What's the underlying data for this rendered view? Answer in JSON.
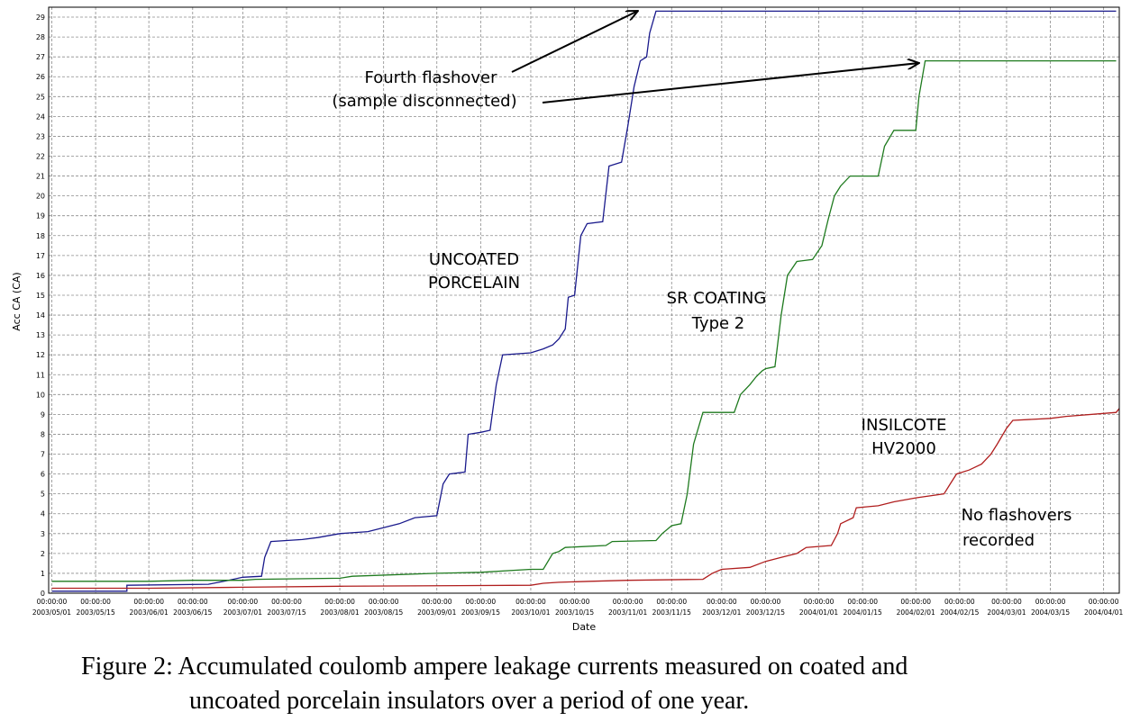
{
  "chart_data": {
    "type": "line",
    "ylabel": "Acc CA (CA)",
    "xlabel": "Date",
    "ylim": [
      0,
      29.5
    ],
    "xlim": [
      "2003-04-30",
      "2004-04-06"
    ],
    "y_ticks": [
      0,
      1,
      2,
      3,
      4,
      5,
      6,
      7,
      8,
      9,
      10,
      11,
      12,
      13,
      14,
      15,
      16,
      17,
      18,
      19,
      20,
      21,
      22,
      23,
      24,
      25,
      26,
      27,
      28,
      29
    ],
    "x_ticks": [
      {
        "time": "00:00:00",
        "date": "2003/05/01",
        "at": "2003-05-01"
      },
      {
        "time": "00:00:00",
        "date": "2003/05/15",
        "at": "2003-05-15"
      },
      {
        "time": "00:00:00",
        "date": "2003/06/01",
        "at": "2003-06-01"
      },
      {
        "time": "00:00:00",
        "date": "2003/06/15",
        "at": "2003-06-15"
      },
      {
        "time": "00:00:00",
        "date": "2003/07/01",
        "at": "2003-07-01"
      },
      {
        "time": "00:00:00",
        "date": "2003/07/15",
        "at": "2003-07-15"
      },
      {
        "time": "00:00:00",
        "date": "2003/08/01",
        "at": "2003-08-01"
      },
      {
        "time": "00:00:00",
        "date": "2003/08/15",
        "at": "2003-08-15"
      },
      {
        "time": "00:00:00",
        "date": "2003/09/01",
        "at": "2003-09-01"
      },
      {
        "time": "00:00:00",
        "date": "2003/09/15",
        "at": "2003-09-15"
      },
      {
        "time": "00:00:00",
        "date": "2003/10/01",
        "at": "2003-10-01"
      },
      {
        "time": "00:00:00",
        "date": "2003/10/15",
        "at": "2003-10-15"
      },
      {
        "time": "00:00:00",
        "date": "2003/11/01",
        "at": "2003-11-01"
      },
      {
        "time": "00:00:00",
        "date": "2003/11/15",
        "at": "2003-11-15"
      },
      {
        "time": "00:00:00",
        "date": "2003/12/01",
        "at": "2003-12-01"
      },
      {
        "time": "00:00:00",
        "date": "2003/12/15",
        "at": "2003-12-15"
      },
      {
        "time": "00:00:00",
        "date": "2004/01/01",
        "at": "2004-01-01"
      },
      {
        "time": "00:00:00",
        "date": "2004/01/15",
        "at": "2004-01-15"
      },
      {
        "time": "00:00:00",
        "date": "2004/02/01",
        "at": "2004-02-01"
      },
      {
        "time": "00:00:00",
        "date": "2004/02/15",
        "at": "2004-02-15"
      },
      {
        "time": "00:00:00",
        "date": "2004/03/01",
        "at": "2004-03-01"
      },
      {
        "time": "00:00:00",
        "date": "2004/03/15",
        "at": "2004-03-15"
      },
      {
        "time": "00:00:00",
        "date": "2004/04/01",
        "at": "2004-04-01"
      }
    ],
    "grid": true,
    "series": [
      {
        "color": "#1a1a8c",
        "points": [
          [
            "2003-05-01",
            0.1
          ],
          [
            "2003-05-25",
            0.1
          ],
          [
            "2003-05-25",
            0.4
          ],
          [
            "2003-06-20",
            0.45
          ],
          [
            "2003-06-25",
            0.6
          ],
          [
            "2003-07-01",
            0.8
          ],
          [
            "2003-07-07",
            0.85
          ],
          [
            "2003-07-08",
            1.8
          ],
          [
            "2003-07-10",
            2.6
          ],
          [
            "2003-07-20",
            2.7
          ],
          [
            "2003-07-25",
            2.8
          ],
          [
            "2003-08-01",
            3.0
          ],
          [
            "2003-08-10",
            3.1
          ],
          [
            "2003-08-20",
            3.5
          ],
          [
            "2003-08-25",
            3.8
          ],
          [
            "2003-09-01",
            3.9
          ],
          [
            "2003-09-03",
            5.5
          ],
          [
            "2003-09-05",
            6.0
          ],
          [
            "2003-09-10",
            6.1
          ],
          [
            "2003-09-11",
            8.0
          ],
          [
            "2003-09-15",
            8.1
          ],
          [
            "2003-09-18",
            8.2
          ],
          [
            "2003-09-20",
            10.5
          ],
          [
            "2003-09-22",
            12.0
          ],
          [
            "2003-10-01",
            12.1
          ],
          [
            "2003-10-05",
            12.3
          ],
          [
            "2003-10-08",
            12.5
          ],
          [
            "2003-10-10",
            12.8
          ],
          [
            "2003-10-12",
            13.3
          ],
          [
            "2003-10-13",
            14.9
          ],
          [
            "2003-10-15",
            15.0
          ],
          [
            "2003-10-17",
            18.0
          ],
          [
            "2003-10-19",
            18.6
          ],
          [
            "2003-10-24",
            18.7
          ],
          [
            "2003-10-26",
            21.5
          ],
          [
            "2003-10-30",
            21.7
          ],
          [
            "2003-11-01",
            23.5
          ],
          [
            "2003-11-03",
            25.5
          ],
          [
            "2003-11-05",
            26.8
          ],
          [
            "2003-11-07",
            27.0
          ],
          [
            "2003-11-08",
            28.2
          ],
          [
            "2003-11-10",
            29.3
          ],
          [
            "2004-04-05",
            29.3
          ]
        ]
      },
      {
        "color": "#1e7a1e",
        "points": [
          [
            "2003-05-01",
            0.6
          ],
          [
            "2003-06-01",
            0.6
          ],
          [
            "2003-06-15",
            0.65
          ],
          [
            "2003-07-01",
            0.65
          ],
          [
            "2003-07-05",
            0.7
          ],
          [
            "2003-08-01",
            0.75
          ],
          [
            "2003-08-05",
            0.85
          ],
          [
            "2003-09-01",
            1.0
          ],
          [
            "2003-09-15",
            1.05
          ],
          [
            "2003-10-01",
            1.2
          ],
          [
            "2003-10-05",
            1.2
          ],
          [
            "2003-10-08",
            2.0
          ],
          [
            "2003-10-10",
            2.1
          ],
          [
            "2003-10-12",
            2.3
          ],
          [
            "2003-10-25",
            2.4
          ],
          [
            "2003-10-27",
            2.6
          ],
          [
            "2003-11-10",
            2.65
          ],
          [
            "2003-11-12",
            3.0
          ],
          [
            "2003-11-15",
            3.4
          ],
          [
            "2003-11-18",
            3.5
          ],
          [
            "2003-11-20",
            5.0
          ],
          [
            "2003-11-22",
            7.5
          ],
          [
            "2003-11-25",
            9.1
          ],
          [
            "2003-12-05",
            9.1
          ],
          [
            "2003-12-07",
            10.0
          ],
          [
            "2003-12-10",
            10.5
          ],
          [
            "2003-12-12",
            10.9
          ],
          [
            "2003-12-14",
            11.2
          ],
          [
            "2003-12-15",
            11.3
          ],
          [
            "2003-12-18",
            11.4
          ],
          [
            "2003-12-20",
            14.0
          ],
          [
            "2003-12-22",
            16.0
          ],
          [
            "2003-12-25",
            16.7
          ],
          [
            "2003-12-30",
            16.8
          ],
          [
            "2004-01-02",
            17.5
          ],
          [
            "2004-01-04",
            18.8
          ],
          [
            "2004-01-06",
            20.0
          ],
          [
            "2004-01-08",
            20.5
          ],
          [
            "2004-01-11",
            21.0
          ],
          [
            "2004-01-20",
            21.0
          ],
          [
            "2004-01-22",
            22.5
          ],
          [
            "2004-01-25",
            23.3
          ],
          [
            "2004-02-01",
            23.3
          ],
          [
            "2004-02-02",
            25.0
          ],
          [
            "2004-02-04",
            26.8
          ],
          [
            "2004-04-05",
            26.8
          ]
        ]
      },
      {
        "color": "#b01e1e",
        "points": [
          [
            "2003-05-01",
            0.25
          ],
          [
            "2003-06-01",
            0.25
          ],
          [
            "2003-07-01",
            0.3
          ],
          [
            "2003-08-01",
            0.35
          ],
          [
            "2003-10-01",
            0.4
          ],
          [
            "2003-10-05",
            0.5
          ],
          [
            "2003-10-10",
            0.55
          ],
          [
            "2003-10-20",
            0.6
          ],
          [
            "2003-11-01",
            0.65
          ],
          [
            "2003-11-25",
            0.7
          ],
          [
            "2003-11-28",
            1.0
          ],
          [
            "2003-12-01",
            1.2
          ],
          [
            "2003-12-10",
            1.3
          ],
          [
            "2003-12-15",
            1.6
          ],
          [
            "2003-12-20",
            1.8
          ],
          [
            "2003-12-25",
            2.0
          ],
          [
            "2003-12-28",
            2.3
          ],
          [
            "2004-01-05",
            2.4
          ],
          [
            "2004-01-07",
            3.0
          ],
          [
            "2004-01-08",
            3.5
          ],
          [
            "2004-01-12",
            3.8
          ],
          [
            "2004-01-13",
            4.3
          ],
          [
            "2004-01-20",
            4.4
          ],
          [
            "2004-01-25",
            4.6
          ],
          [
            "2004-02-01",
            4.8
          ],
          [
            "2004-02-10",
            5.0
          ],
          [
            "2004-02-12",
            5.5
          ],
          [
            "2004-02-14",
            6.0
          ],
          [
            "2004-02-18",
            6.2
          ],
          [
            "2004-02-22",
            6.5
          ],
          [
            "2004-02-25",
            7.0
          ],
          [
            "2004-02-27",
            7.5
          ],
          [
            "2004-03-01",
            8.3
          ],
          [
            "2004-03-03",
            8.7
          ],
          [
            "2004-03-15",
            8.8
          ],
          [
            "2004-03-20",
            8.9
          ],
          [
            "2004-04-05",
            9.1
          ],
          [
            "2004-04-06",
            9.3
          ]
        ]
      }
    ],
    "annotations": {
      "uncoated": [
        "UNCOATED",
        "PORCELAIN"
      ],
      "sr": [
        "SR COATING",
        "Type 2"
      ],
      "insilcote": [
        "INSILCOTE",
        "HV2000"
      ],
      "noflash": [
        "No flashovers",
        "recorded"
      ],
      "fourth": [
        "Fourth flashover",
        "(sample disconnected)"
      ]
    }
  },
  "caption": {
    "line1": "Figure 2: Accumulated coulomb ampere leakage currents measured on coated and",
    "line2": "uncoated porcelain insulators over a period of one year."
  }
}
